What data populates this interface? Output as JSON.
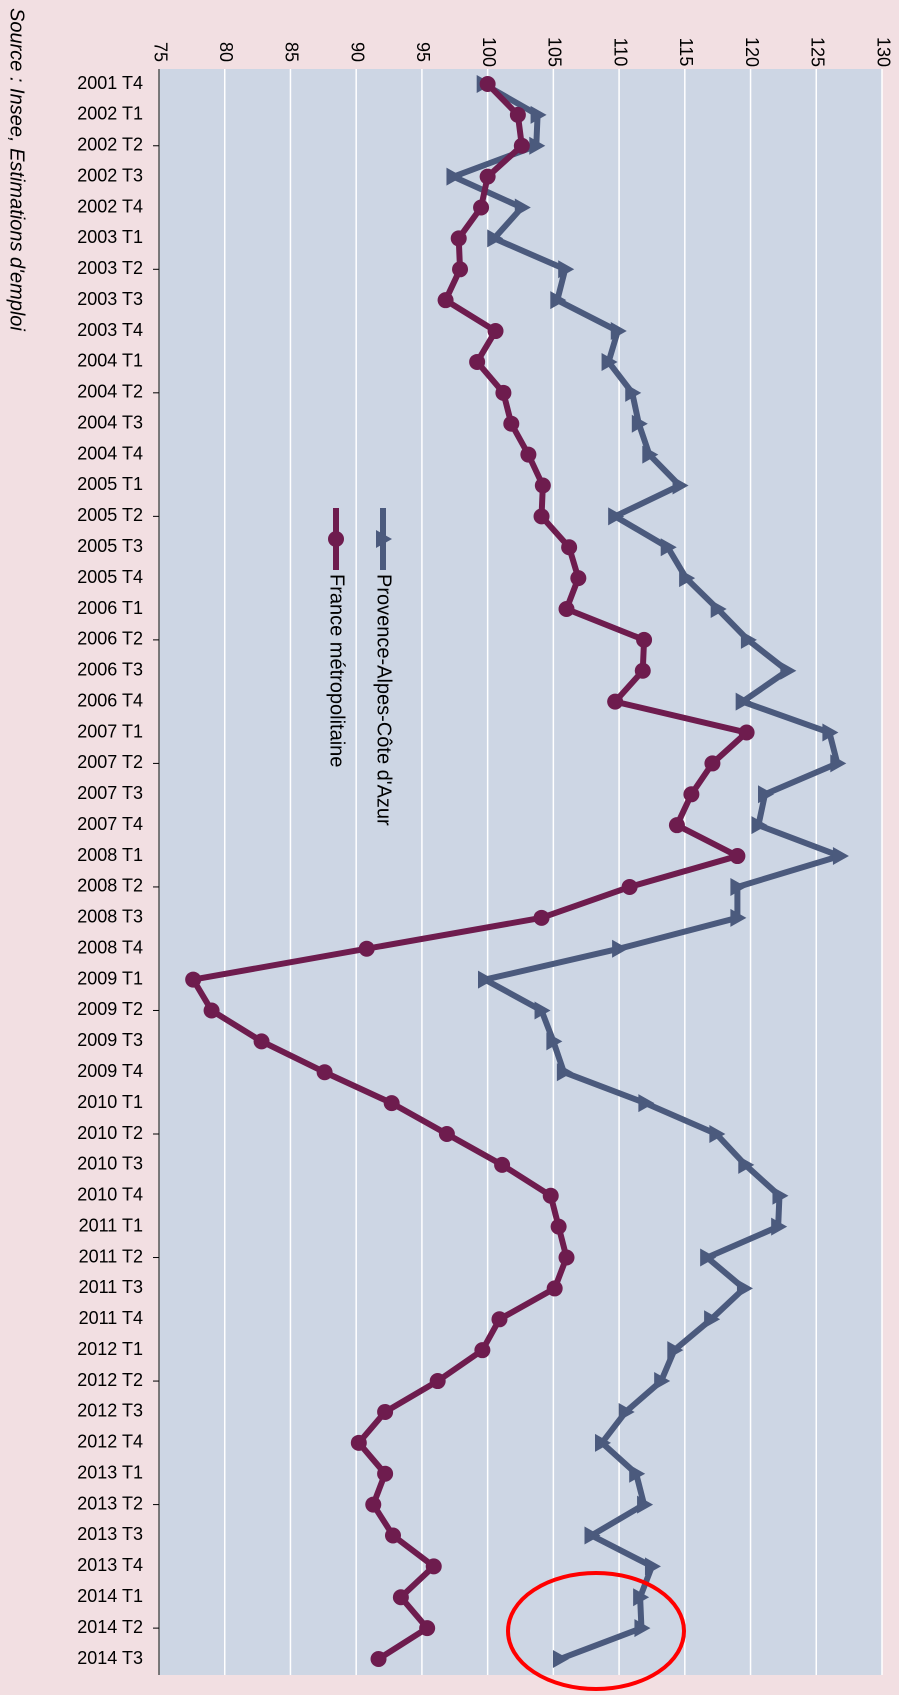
{
  "chart_data": {
    "type": "line",
    "source": "Source : Insee, Estimations d'emploi",
    "categories": [
      "2001 T4",
      "2002 T1",
      "2002 T2",
      "2002 T3",
      "2002 T4",
      "2003 T1",
      "2003 T2",
      "2003 T3",
      "2003 T4",
      "2004 T1",
      "2004 T2",
      "2004 T3",
      "2004 T4",
      "2005 T1",
      "2005 T2",
      "2005 T3",
      "2005 T4",
      "2006 T1",
      "2006 T2",
      "2006 T3",
      "2006 T4",
      "2007 T1",
      "2007 T2",
      "2007 T3",
      "2007 T4",
      "2008 T1",
      "2008 T2",
      "2008 T3",
      "2008 T4",
      "2009 T1",
      "2009 T2",
      "2009 T3",
      "2009 T4",
      "2010 T1",
      "2010 T2",
      "2010 T3",
      "2010 T4",
      "2011 T1",
      "2011 T2",
      "2011 T3",
      "2011 T4",
      "2012 T1",
      "2012 T2",
      "2012 T3",
      "2012 T4",
      "2013 T1",
      "2013 T2",
      "2013 T3",
      "2013 T4",
      "2014 T1",
      "2014 T2",
      "2014 T3"
    ],
    "series": [
      {
        "name": "Provence-Alpes-Côte d'Azur",
        "color": "#4b5a7d",
        "marker": "triangle",
        "values": [
          99.7,
          103.8,
          103.7,
          97.4,
          102.6,
          100.5,
          105.9,
          105.3,
          109.9,
          109.2,
          111.0,
          111.5,
          112.3,
          114.6,
          109.7,
          113.7,
          115.1,
          117.5,
          119.8,
          122.8,
          119.4,
          126.0,
          126.6,
          121.1,
          120.6,
          126.8,
          119.0,
          119.0,
          110.0,
          99.8,
          104.1,
          105.0,
          105.8,
          112.0,
          117.4,
          119.6,
          122.2,
          122.1,
          116.7,
          119.5,
          117.0,
          114.2,
          113.2,
          110.5,
          108.7,
          111.3,
          111.9,
          107.9,
          112.5,
          111.6,
          111.7,
          105.5
        ]
      },
      {
        "name": "France métropolitaine",
        "color": "#6e1c4e",
        "marker": "circle",
        "values": [
          100.0,
          102.3,
          102.6,
          100.0,
          99.5,
          97.8,
          97.9,
          96.8,
          100.6,
          99.2,
          101.2,
          101.8,
          103.1,
          104.2,
          104.1,
          106.2,
          106.9,
          106.0,
          111.9,
          111.8,
          109.7,
          119.7,
          117.1,
          115.5,
          114.4,
          119.0,
          110.8,
          104.1,
          90.8,
          77.6,
          79.0,
          82.8,
          87.6,
          92.7,
          96.9,
          101.1,
          104.8,
          105.4,
          106.0,
          105.1,
          100.9,
          99.6,
          96.2,
          92.2,
          90.2,
          92.2,
          91.3,
          92.8,
          95.9,
          93.4,
          95.4,
          91.7
        ]
      }
    ],
    "ylim": [
      75,
      130
    ],
    "yticks": [
      75,
      80,
      85,
      90,
      95,
      100,
      105,
      110,
      115,
      120,
      125,
      130
    ],
    "grid": true
  }
}
